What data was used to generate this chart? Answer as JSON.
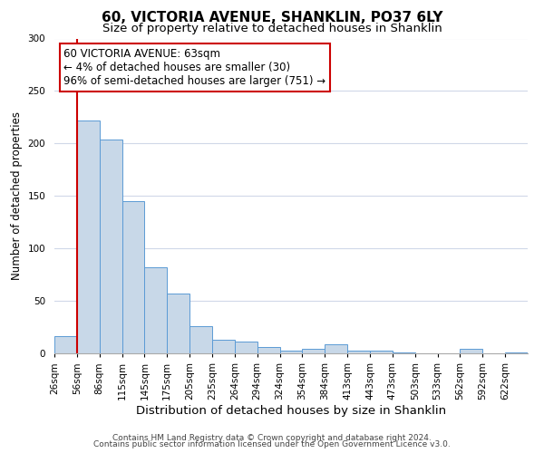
{
  "title": "60, VICTORIA AVENUE, SHANKLIN, PO37 6LY",
  "subtitle": "Size of property relative to detached houses in Shanklin",
  "xlabel": "Distribution of detached houses by size in Shanklin",
  "ylabel": "Number of detached properties",
  "bin_labels": [
    "26sqm",
    "56sqm",
    "86sqm",
    "115sqm",
    "145sqm",
    "175sqm",
    "205sqm",
    "235sqm",
    "264sqm",
    "294sqm",
    "324sqm",
    "354sqm",
    "384sqm",
    "413sqm",
    "443sqm",
    "473sqm",
    "503sqm",
    "533sqm",
    "562sqm",
    "592sqm",
    "622sqm"
  ],
  "bar_heights": [
    16,
    222,
    204,
    145,
    82,
    57,
    26,
    13,
    11,
    6,
    3,
    4,
    9,
    3,
    3,
    1,
    0,
    0,
    4,
    0,
    1
  ],
  "bar_color": "#c8d8e8",
  "bar_edge_color": "#5b9bd5",
  "property_bin_index": 1,
  "red_line_color": "#cc0000",
  "annotation_line1": "60 VICTORIA AVENUE: 63sqm",
  "annotation_line2": "← 4% of detached houses are smaller (30)",
  "annotation_line3": "96% of semi-detached houses are larger (751) →",
  "annotation_box_edge_color": "#cc0000",
  "annotation_fontsize": 8.5,
  "ylim": [
    0,
    300
  ],
  "yticks": [
    0,
    50,
    100,
    150,
    200,
    250,
    300
  ],
  "footer_line1": "Contains HM Land Registry data © Crown copyright and database right 2024.",
  "footer_line2": "Contains public sector information licensed under the Open Government Licence v3.0.",
  "background_color": "#ffffff",
  "grid_color": "#d0d8e8",
  "title_fontsize": 11,
  "subtitle_fontsize": 9.5,
  "xlabel_fontsize": 9.5,
  "ylabel_fontsize": 8.5,
  "tick_fontsize": 7.5,
  "footer_fontsize": 6.5
}
